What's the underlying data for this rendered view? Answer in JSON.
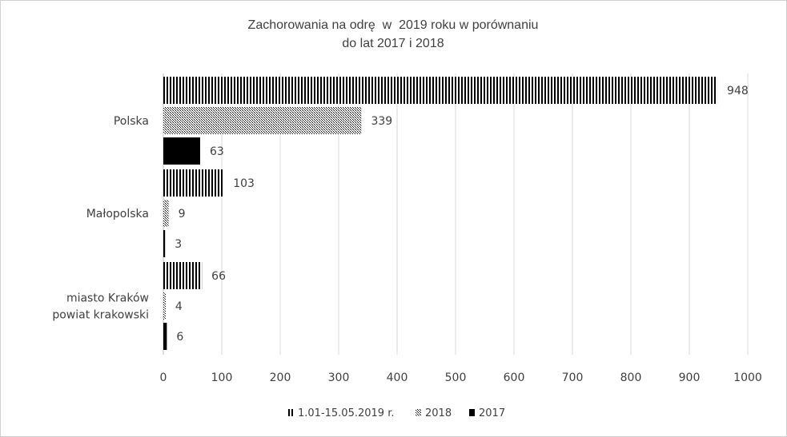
{
  "chart_data": {
    "type": "bar",
    "orientation": "horizontal",
    "title": [
      "Zachorowania na odrę  w  2019 roku w porównaniu",
      "do lat 2017 i 2018"
    ],
    "categories": [
      "Polska",
      "Małopolska",
      "miasto Kraków\npowiat krakowski"
    ],
    "series": [
      {
        "name": "1.01-15.05.2019 r.",
        "values": [
          948,
          103,
          66
        ],
        "pattern": "vertical-stripes",
        "color": "#000000"
      },
      {
        "name": "2018",
        "values": [
          339,
          9,
          4
        ],
        "pattern": "dots",
        "color": "#000000"
      },
      {
        "name": "2017",
        "values": [
          63,
          3,
          6
        ],
        "pattern": "solid",
        "color": "#000000"
      }
    ],
    "xlim": [
      0,
      1000
    ],
    "xticks": [
      0,
      100,
      200,
      300,
      400,
      500,
      600,
      700,
      800,
      900,
      1000
    ],
    "grid": true,
    "legend_position": "bottom",
    "data_labels": true
  }
}
